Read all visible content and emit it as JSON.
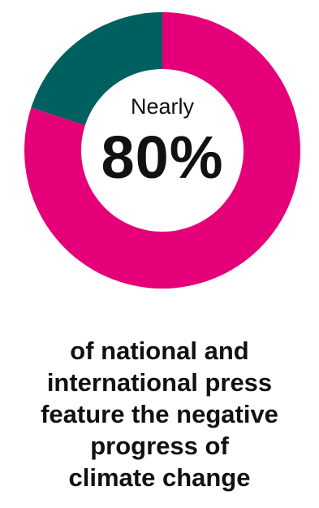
{
  "chart_data": {
    "type": "pie",
    "variant": "donut",
    "slices": [
      {
        "value": 80,
        "color": "#E5007A"
      },
      {
        "value": 20,
        "color": "#005F5F"
      }
    ],
    "center_prefix": "Nearly",
    "center_value": "80%"
  },
  "caption": {
    "lines": [
      "of national and",
      "international press",
      "feature the negative",
      "progress of",
      "climate change"
    ]
  }
}
